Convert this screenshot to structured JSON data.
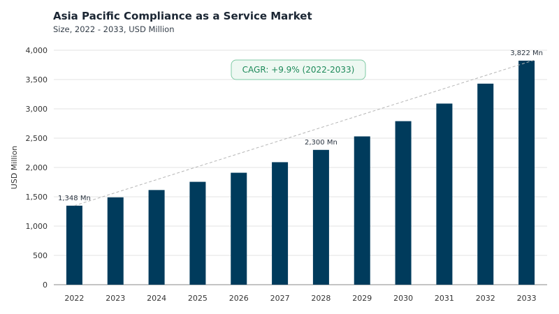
{
  "chart_data": {
    "type": "bar",
    "title": "Asia Pacific Compliance as a Service Market",
    "subtitle": "Size, 2022 - 2033, USD Million",
    "ylabel": "USD Million",
    "xlabel": "",
    "ylim": [
      0,
      4000
    ],
    "yticks": [
      0,
      500,
      1000,
      1500,
      2000,
      2500,
      3000,
      3500,
      4000
    ],
    "ytick_labels": [
      "0",
      "500",
      "1,000",
      "1,500",
      "2,000",
      "2,500",
      "3,000",
      "3,500",
      "4,000"
    ],
    "categories": [
      "2022",
      "2023",
      "2024",
      "2025",
      "2026",
      "2027",
      "2028",
      "2029",
      "2030",
      "2031",
      "2032",
      "2033"
    ],
    "values": [
      1348,
      1490,
      1615,
      1755,
      1910,
      2090,
      2300,
      2530,
      2790,
      3090,
      3430,
      3822
    ],
    "bar_color": "#003b5c",
    "grid": true,
    "annotations": [
      {
        "category": "2022",
        "label": "1,348 Mn"
      },
      {
        "category": "2028",
        "label": "2,300 Mn"
      },
      {
        "category": "2033",
        "label": "3,822 Mn"
      }
    ],
    "cagr_label": "CAGR: +9.9% (2022-2033)",
    "cagr_color": "#1e8a5a",
    "trendline": {
      "from": "2022",
      "to": "2033",
      "style": "dashed"
    }
  }
}
